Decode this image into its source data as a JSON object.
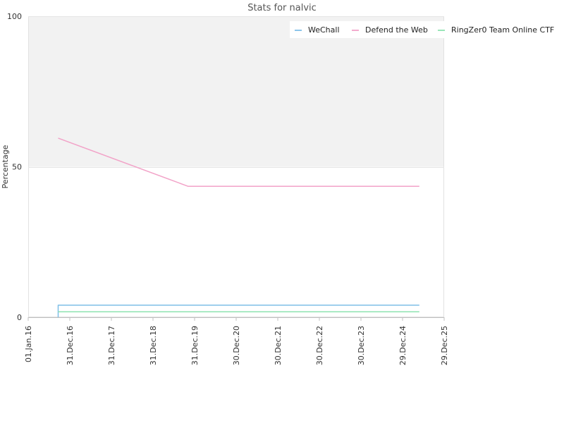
{
  "chart_data": {
    "type": "line",
    "title": "Stats for nalvic",
    "xlabel": "",
    "ylabel": "Percentage",
    "ylim": [
      0,
      100
    ],
    "y_ticks": [
      0,
      50,
      100
    ],
    "x_tick_labels": [
      "01.Jan.16",
      "31.Dec.16",
      "31.Dec.17",
      "31.Dec.18",
      "31.Dec.19",
      "30.Dec.20",
      "30.Dec.21",
      "30.Dec.22",
      "30.Dec.23",
      "29.Dec.24",
      "29.Dec.25"
    ],
    "xlim": [
      "2016-01-01",
      "2025-12-29"
    ],
    "grid": "horizontal",
    "shaded_band": [
      50,
      100
    ],
    "legend_position": "top-right",
    "series": [
      {
        "name": "WeChall",
        "color": "#7fbfe8",
        "points": [
          [
            "2016-09-20",
            0
          ],
          [
            "2016-09-20",
            4
          ],
          [
            "2025-05-25",
            4
          ]
        ]
      },
      {
        "name": "Defend the Web",
        "color": "#f2a3c8",
        "points": [
          [
            "2016-09-20",
            59.5
          ],
          [
            "2019-11-05",
            43.5
          ],
          [
            "2025-05-25",
            43.5
          ]
        ]
      },
      {
        "name": "RingZer0 Team Online CTF",
        "color": "#8ee3b0",
        "points": [
          [
            "2016-09-20",
            1.8
          ],
          [
            "2025-05-25",
            1.8
          ]
        ]
      }
    ]
  }
}
